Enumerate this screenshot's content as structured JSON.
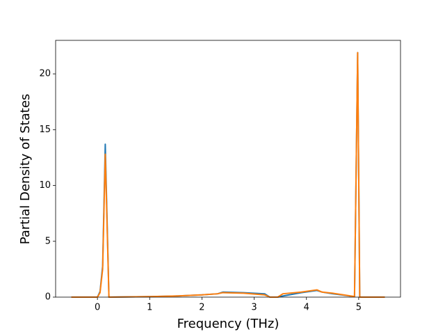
{
  "chart_data": {
    "type": "line",
    "x_label": "Frequency (THz)",
    "y_label": "Partial Density of States",
    "x": [
      -0.5,
      0,
      0.05,
      0.1,
      0.15,
      0.22,
      1,
      1.5,
      2,
      2.3,
      2.4,
      2.8,
      3.2,
      3.3,
      3.45,
      3.55,
      3.9,
      4.2,
      4.3,
      4.5,
      4.92,
      4.98,
      5.02,
      5.5
    ],
    "series": [
      {
        "color": "#1f77b4",
        "values": [
          0,
          0,
          0.5,
          2.8,
          13.7,
          0,
          0.05,
          0.1,
          0.2,
          0.3,
          0.45,
          0.4,
          0.3,
          0,
          0,
          0.1,
          0.4,
          0.6,
          0.45,
          0.3,
          0.05,
          21.9,
          0,
          0
        ]
      },
      {
        "color": "#ff7f0e",
        "values": [
          0,
          0,
          0.4,
          2.5,
          12.8,
          0,
          0.05,
          0.1,
          0.2,
          0.3,
          0.4,
          0.35,
          0.2,
          0,
          0,
          0.3,
          0.45,
          0.65,
          0.45,
          0.35,
          0.05,
          21.9,
          0,
          0
        ]
      }
    ],
    "xlim": [
      -0.8,
      5.8
    ],
    "xticks": [
      0,
      1,
      2,
      3,
      4,
      5
    ],
    "ylim": [
      0,
      23
    ],
    "yticks": [
      0,
      5,
      10,
      15,
      20
    ]
  }
}
